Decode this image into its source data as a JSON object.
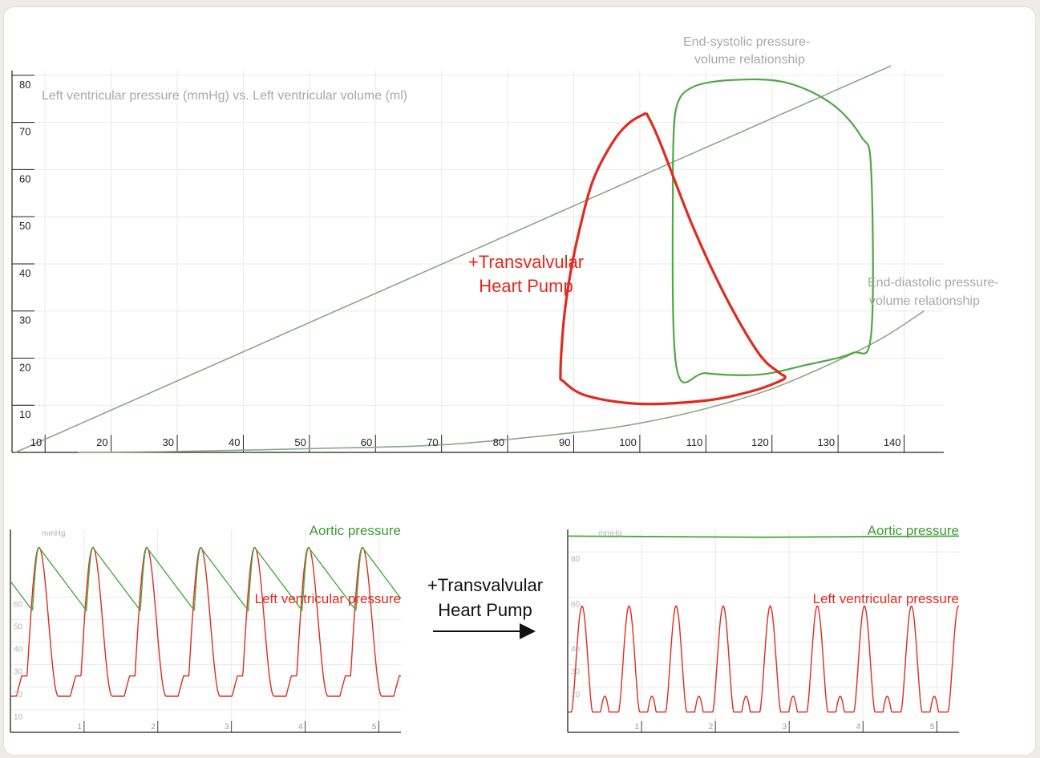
{
  "colors": {
    "green": "#4ea843",
    "red": "#e02b1f",
    "relation": "#8aa88a",
    "grid": "#e9e9e9"
  },
  "chart_data": [
    {
      "type": "line",
      "chart": "pv-loop",
      "title": "Left ventricular pressure (mmHg) vs. Left ventricular volume (ml)",
      "xlabel": "",
      "ylabel": "",
      "xlim": [
        5,
        146
      ],
      "ylim": [
        0,
        81
      ],
      "x_ticks": [
        10,
        20,
        30,
        40,
        50,
        60,
        70,
        80,
        90,
        100,
        110,
        120,
        130,
        140
      ],
      "y_ticks": [
        10,
        20,
        30,
        40,
        50,
        60,
        70,
        80
      ],
      "grid": true,
      "annotations": [
        {
          "id": "espvr",
          "lines": [
            "End-systolic pressure-",
            "volume relationship"
          ]
        },
        {
          "id": "edpvr",
          "lines": [
            "End-diastolic pressure-",
            "volume relationship"
          ]
        },
        {
          "id": "pump",
          "lines": [
            "+Transvalvular",
            "Heart Pump"
          ]
        }
      ],
      "series": [
        {
          "key": "baseline",
          "x": [
            105,
            105.5,
            108,
            114,
            122,
            129,
            133.5,
            135,
            135,
            132,
            125,
            118,
            110,
            105.5,
            105
          ],
          "y": [
            61,
            73,
            77.5,
            79,
            78.5,
            74,
            67,
            60,
            25,
            21,
            18.5,
            16.5,
            16.8,
            18.5,
            61
          ]
        },
        {
          "key": "pump",
          "x": [
            101,
            98.5,
            96,
            93,
            91,
            89.5,
            88.5,
            88,
            88.5,
            92,
            100,
            110,
            117,
            121,
            122,
            121,
            118,
            113,
            108,
            103,
            101
          ],
          "y": [
            72,
            70,
            66,
            58,
            48,
            38,
            28,
            17,
            15,
            12,
            10.3,
            11,
            13,
            15,
            16,
            17,
            21,
            33,
            48,
            66,
            72
          ]
        },
        {
          "key": "espvr",
          "x": [
            5.5,
            138
          ],
          "y": [
            0,
            82
          ]
        },
        {
          "key": "edpvr",
          "x": [
            15,
            30,
            50,
            70,
            90,
            100,
            110,
            120,
            130,
            137,
            143
          ],
          "y": [
            0,
            0.2,
            0.8,
            1.6,
            4.2,
            6.2,
            9.3,
            13.5,
            19.5,
            24.5,
            30
          ]
        }
      ]
    },
    {
      "type": "line",
      "chart": "pressure-baseline",
      "ylabel": "mmHg",
      "xlim": [
        0,
        5.3
      ],
      "ylim": [
        0,
        90
      ],
      "x_ticks": [
        1,
        2,
        3,
        4,
        5
      ],
      "y_ticks": [
        10,
        20,
        30,
        40,
        50,
        60
      ],
      "grid": true,
      "series": [
        {
          "name": "Aortic pressure",
          "key": "aortic"
        },
        {
          "name": "Left ventricular pressure",
          "key": "lv"
        }
      ],
      "beats": 7,
      "lv_peak": 82,
      "lv_min": 16,
      "lv_plateau": 25,
      "aortic_peak": 82,
      "aortic_trough": 54
    },
    {
      "type": "line",
      "chart": "pressure-pump",
      "ylabel": "mmHg",
      "xlim": [
        0,
        5.3
      ],
      "ylim": [
        0,
        90
      ],
      "x_ticks": [
        1,
        2,
        3,
        4,
        5
      ],
      "y_ticks": [
        20,
        30,
        40,
        60,
        80
      ],
      "grid": true,
      "series": [
        {
          "name": "Aortic pressure",
          "key": "aortic"
        },
        {
          "name": "Left ventricular pressure",
          "key": "lv"
        }
      ],
      "beats": 8,
      "aortic_level": 87,
      "lv_peak": 56,
      "lv_min": 9,
      "lv_notch": 16
    }
  ],
  "middle": {
    "label_lines": [
      "+Transvalvular",
      "Heart Pump"
    ],
    "arrow": "arrow-right"
  }
}
